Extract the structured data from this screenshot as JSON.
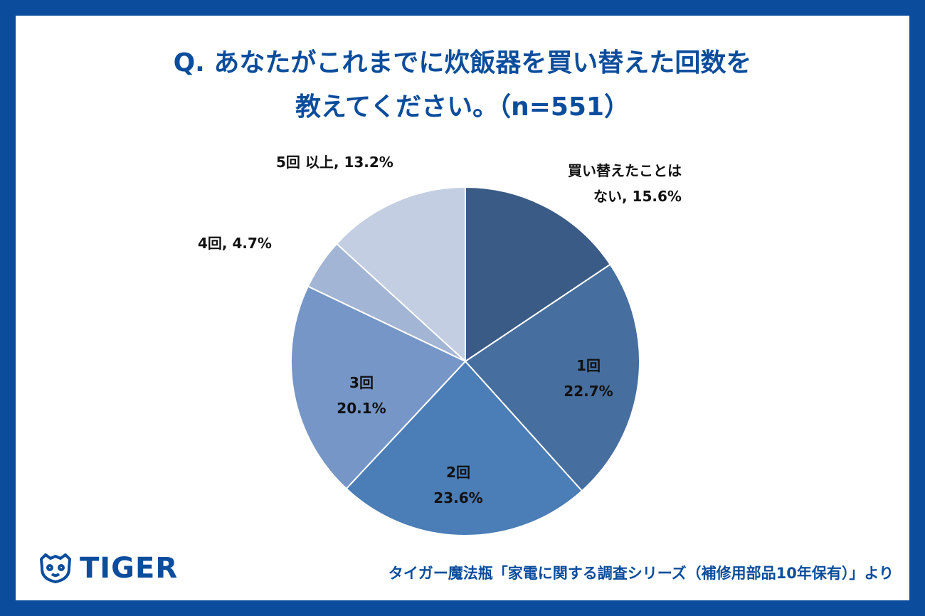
{
  "title": {
    "line1": "Q. あなたがこれまでに炊飯器を買い替えた回数を",
    "line2": "教えてください。（n=551）"
  },
  "chart_data": {
    "type": "pie",
    "title": "Q. あなたがこれまでに炊飯器を買い替えた回数を教えてください。（n=551）",
    "n": 551,
    "slices": [
      {
        "label": "買い替えたことはない",
        "label_line1": "買い替えたことは",
        "label_line2": "ない, 15.6%",
        "value": 15.6,
        "value_text": "15.6%",
        "color": "#3a5b86"
      },
      {
        "label": "1回",
        "value": 22.7,
        "value_text": "22.7%",
        "color": "#466e9f"
      },
      {
        "label": "2回",
        "value": 23.6,
        "value_text": "23.6%",
        "color": "#4b7db6"
      },
      {
        "label": "3回",
        "value": 20.1,
        "value_text": "20.1%",
        "color": "#7596c6"
      },
      {
        "label": "4回",
        "value": 4.7,
        "value_text": "4回, 4.7%",
        "color": "#a3b5d4"
      },
      {
        "label": "5回以上",
        "value": 13.2,
        "value_text": "5回 以上, 13.2%",
        "color": "#c3cee2"
      }
    ]
  },
  "logo": {
    "text": "TIGER",
    "icon": "tiger-face-icon"
  },
  "source": "タイガー魔法瓶「家電に関する調査シリーズ（補修用部品10年保有）」より"
}
